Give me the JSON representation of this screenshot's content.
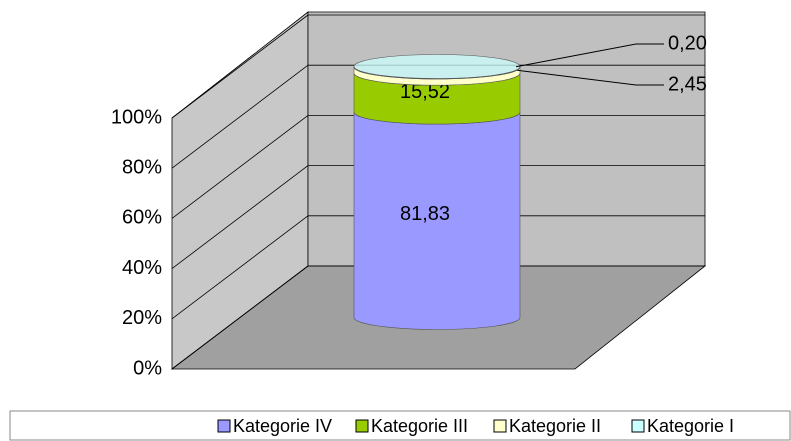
{
  "chart_data": {
    "type": "cylinder",
    "series": [
      {
        "name": "Kategorie IV",
        "color": "#9999ff",
        "values": [
          81.83
        ],
        "value_labels": [
          "81,83"
        ]
      },
      {
        "name": "Kategorie III",
        "color": "#99cc00",
        "values": [
          15.52
        ],
        "value_labels": [
          "15,52"
        ]
      },
      {
        "name": "Kategorie II",
        "color": "#ffffcc",
        "values": [
          2.45
        ],
        "value_labels": [
          "2,45"
        ]
      },
      {
        "name": "Kategorie I",
        "color": "#ccffff",
        "values": [
          0.2
        ],
        "value_labels": [
          "0,20"
        ]
      }
    ],
    "ylim": [
      0,
      100
    ],
    "yticks": [
      {
        "value": 0,
        "label": "0%"
      },
      {
        "value": 20,
        "label": "20%"
      },
      {
        "value": 40,
        "label": "40%"
      },
      {
        "value": 60,
        "label": "60%"
      },
      {
        "value": 80,
        "label": "80%"
      },
      {
        "value": 100,
        "label": "100%"
      }
    ],
    "grid": true,
    "legend": "bottom"
  }
}
